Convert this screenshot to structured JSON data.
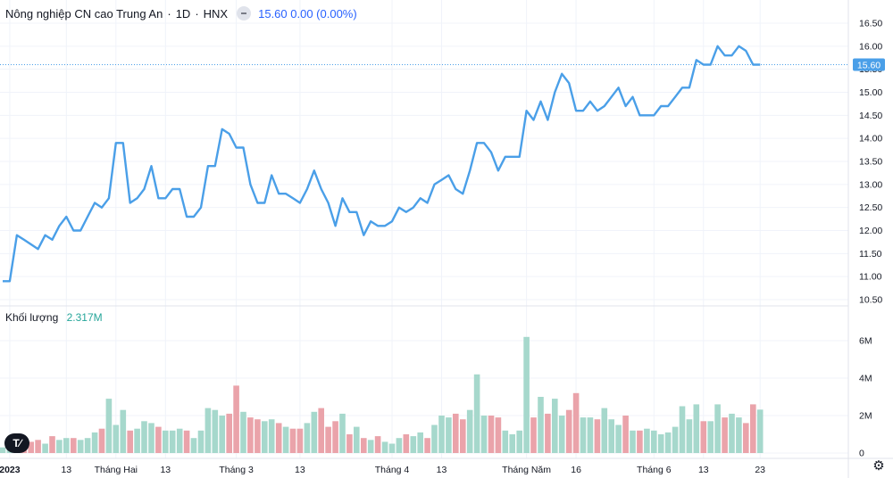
{
  "header": {
    "symbol": "Nông nghiệp CN cao Trung An",
    "sep1": "·",
    "interval": "1D",
    "sep2": "·",
    "exchange": "HNX",
    "quote": "15.60 0.00 (0.00%)"
  },
  "volume_pane": {
    "label": "Khối lượng",
    "value": "2.317M"
  },
  "price_label": "15.60",
  "colors": {
    "line": "#4a9fe8",
    "grid": "#f0f3fa",
    "up": "#a6d8cc",
    "down": "#eaa3aa",
    "price_tag": "#4a9fe8"
  },
  "icons": {
    "logo": "tradingview-logo-icon",
    "settings": "gear-icon"
  },
  "chart_data": [
    {
      "type": "line",
      "title": "Nông nghiệp CN cao Trung An",
      "ylim": [
        10.4,
        16.6
      ],
      "y_ticks": [
        "10.50",
        "11.00",
        "11.50",
        "12.00",
        "12.50",
        "13.00",
        "13.50",
        "14.00",
        "14.50",
        "15.00",
        "15.50",
        "16.00",
        "16.50"
      ],
      "x_ticks": [
        {
          "label": "2023",
          "i": 1
        },
        {
          "label": "13",
          "i": 9
        },
        {
          "label": "Tháng Hai",
          "i": 16
        },
        {
          "label": "13",
          "i": 23
        },
        {
          "label": "Tháng 3",
          "i": 33
        },
        {
          "label": "13",
          "i": 42
        },
        {
          "label": "Tháng 4",
          "i": 55
        },
        {
          "label": "13",
          "i": 62
        },
        {
          "label": "Tháng Năm",
          "i": 74
        },
        {
          "label": "16",
          "i": 81
        },
        {
          "label": "Tháng 6",
          "i": 92
        },
        {
          "label": "13",
          "i": 99
        },
        {
          "label": "23",
          "i": 107
        }
      ],
      "series": [
        {
          "values": [
            10.9,
            10.9,
            11.9,
            11.8,
            11.7,
            11.6,
            11.9,
            11.8,
            12.1,
            12.3,
            12.0,
            12.0,
            12.3,
            12.6,
            12.5,
            12.7,
            13.9,
            13.9,
            12.6,
            12.7,
            12.9,
            13.4,
            12.7,
            12.7,
            12.9,
            12.9,
            12.3,
            12.3,
            12.5,
            13.4,
            13.4,
            14.2,
            14.1,
            13.8,
            13.8,
            13.0,
            12.6,
            12.6,
            13.2,
            12.8,
            12.8,
            12.7,
            12.6,
            12.9,
            13.3,
            12.9,
            12.6,
            12.1,
            12.7,
            12.4,
            12.4,
            11.9,
            12.2,
            12.1,
            12.1,
            12.2,
            12.5,
            12.4,
            12.5,
            12.7,
            12.6,
            13.0,
            13.1,
            13.2,
            12.9,
            12.8,
            13.3,
            13.9,
            13.9,
            13.7,
            13.3,
            13.6,
            13.6,
            13.6,
            14.6,
            14.4,
            14.8,
            14.4,
            15.0,
            15.4,
            15.2,
            14.6,
            14.6,
            14.8,
            14.6,
            14.7,
            14.9,
            15.1,
            14.7,
            14.9,
            14.5,
            14.5,
            14.5,
            14.7,
            14.7,
            14.9,
            15.1,
            15.1,
            15.7,
            15.6,
            15.6,
            16.0,
            15.8,
            15.8,
            16.0,
            15.9,
            15.6,
            15.6
          ]
        }
      ]
    },
    {
      "type": "bar",
      "title": "Khối lượng",
      "ylim": [
        0,
        7
      ],
      "y_unit": "M",
      "y_ticks": [
        "0",
        "2M",
        "4M",
        "6M"
      ],
      "series": [
        {
          "name": "Khối lượng",
          "values": [
            0.3,
            0.5,
            0.7,
            0.6,
            0.6,
            0.7,
            0.5,
            0.9,
            0.7,
            0.8,
            0.8,
            0.7,
            0.8,
            1.1,
            1.3,
            2.9,
            1.5,
            2.3,
            1.2,
            1.3,
            1.7,
            1.6,
            1.4,
            1.2,
            1.2,
            1.3,
            1.2,
            0.8,
            1.2,
            2.4,
            2.3,
            2.0,
            2.1,
            3.6,
            2.2,
            1.9,
            1.8,
            1.7,
            1.8,
            1.6,
            1.4,
            1.3,
            1.3,
            1.6,
            2.2,
            2.4,
            1.4,
            1.7,
            2.1,
            1.0,
            1.4,
            0.8,
            0.7,
            0.9,
            0.6,
            0.5,
            0.8,
            1.0,
            0.9,
            1.1,
            0.8,
            1.5,
            2.0,
            1.9,
            2.1,
            1.8,
            2.3,
            4.2,
            2.0,
            2.0,
            1.9,
            1.2,
            1.0,
            1.2,
            6.2,
            1.9,
            3.0,
            2.1,
            2.9,
            2.0,
            2.3,
            3.2,
            1.9,
            1.9,
            1.8,
            2.4,
            1.8,
            1.5,
            2.0,
            1.2,
            1.2,
            1.3,
            1.2,
            1.0,
            1.1,
            1.4,
            2.5,
            1.8,
            2.6,
            1.7,
            1.7,
            2.6,
            1.9,
            2.1,
            1.9,
            1.6,
            2.6,
            2.317
          ]
        }
      ]
    }
  ]
}
